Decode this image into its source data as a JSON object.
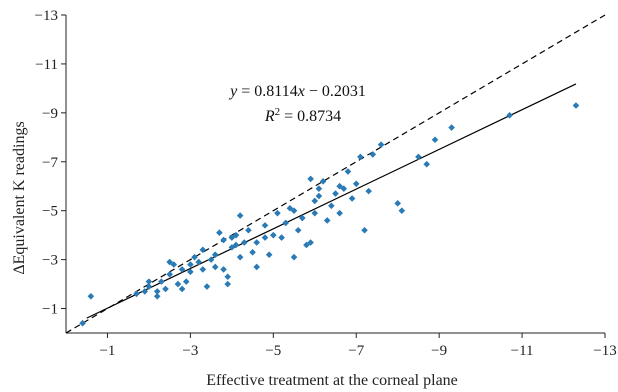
{
  "chart_data": {
    "type": "scatter",
    "title": "",
    "xlabel": "Effective treatment at the corneal plane",
    "ylabel": "ΔEquivalent K readings",
    "xlim": [
      0,
      -13
    ],
    "ylim": [
      0,
      -13
    ],
    "xticks": [
      -1,
      -3,
      -5,
      -7,
      -9,
      -11,
      -13
    ],
    "yticks": [
      -1,
      -3,
      -5,
      -7,
      -9,
      -11,
      -13
    ],
    "xtick_labels": [
      "−1",
      "−3",
      "−5",
      "−7",
      "−9",
      "−11",
      "−13"
    ],
    "ytick_labels": [
      "−1",
      "−3",
      "−5",
      "−7",
      "−9",
      "−11",
      "−13"
    ],
    "grid": false,
    "legend": "none",
    "marker": "diamond",
    "colors": {
      "points": "#2a7ab5",
      "fit_line": "#000000",
      "identity_line": "#000000"
    },
    "annotations": {
      "equation_parts": [
        "y",
        " = 0.8114",
        "x",
        " − 0.2031"
      ],
      "r2_parts": [
        "R",
        "2",
        " = 0.8734"
      ]
    },
    "lines": [
      {
        "style": "solid",
        "slope": 0.8114,
        "intercept": -0.2031,
        "x_range": [
          -0.5,
          -12.3
        ]
      },
      {
        "style": "dashed",
        "slope": 1,
        "intercept": 0,
        "x_range": [
          0,
          -13
        ]
      }
    ],
    "points": [
      [
        -0.4,
        -0.4
      ],
      [
        -0.6,
        -1.5
      ],
      [
        -1.7,
        -1.6
      ],
      [
        -1.9,
        -1.7
      ],
      [
        -2.0,
        -1.9
      ],
      [
        -2.2,
        -1.5
      ],
      [
        -2.2,
        -1.7
      ],
      [
        -2.3,
        -2.1
      ],
      [
        -2.4,
        -1.8
      ],
      [
        -2.5,
        -2.4
      ],
      [
        -2.6,
        -2.8
      ],
      [
        -2.5,
        -2.9
      ],
      [
        -2.7,
        -2.0
      ],
      [
        -2.8,
        -2.6
      ],
      [
        -2.8,
        -1.8
      ],
      [
        -2.9,
        -2.1
      ],
      [
        -3.0,
        -2.5
      ],
      [
        -3.1,
        -3.1
      ],
      [
        -3.2,
        -2.9
      ],
      [
        -3.3,
        -2.6
      ],
      [
        -3.3,
        -3.4
      ],
      [
        -3.4,
        -1.9
      ],
      [
        -3.5,
        -3.0
      ],
      [
        -3.6,
        -3.2
      ],
      [
        -3.7,
        -4.1
      ],
      [
        -3.8,
        -2.6
      ],
      [
        -3.8,
        -3.8
      ],
      [
        -3.9,
        -2.3
      ],
      [
        -3.9,
        -2.0
      ],
      [
        -4.0,
        -3.5
      ],
      [
        -4.0,
        -3.9
      ],
      [
        -4.1,
        -4.0
      ],
      [
        -4.2,
        -3.1
      ],
      [
        -4.2,
        -4.8
      ],
      [
        -4.3,
        -3.7
      ],
      [
        -4.4,
        -4.2
      ],
      [
        -4.5,
        -3.3
      ],
      [
        -4.6,
        -2.7
      ],
      [
        -4.6,
        -3.7
      ],
      [
        -4.8,
        -3.9
      ],
      [
        -4.9,
        -3.2
      ],
      [
        -5.0,
        -4.0
      ],
      [
        -5.1,
        -4.9
      ],
      [
        -5.2,
        -3.9
      ],
      [
        -5.3,
        -4.5
      ],
      [
        -5.4,
        -5.1
      ],
      [
        -5.5,
        -3.1
      ],
      [
        -5.6,
        -4.2
      ],
      [
        -5.7,
        -4.7
      ],
      [
        -5.8,
        -3.6
      ],
      [
        -5.9,
        -3.7
      ],
      [
        -5.9,
        -6.3
      ],
      [
        -6.0,
        -4.9
      ],
      [
        -6.1,
        -5.6
      ],
      [
        -6.1,
        -5.9
      ],
      [
        -6.2,
        -6.2
      ],
      [
        -6.3,
        -4.6
      ],
      [
        -6.4,
        -5.2
      ],
      [
        -6.5,
        -5.7
      ],
      [
        -6.6,
        -4.9
      ],
      [
        -6.7,
        -5.9
      ],
      [
        -6.8,
        -6.6
      ],
      [
        -6.9,
        -5.5
      ],
      [
        -7.0,
        -6.1
      ],
      [
        -7.1,
        -7.2
      ],
      [
        -7.2,
        -4.2
      ],
      [
        -7.3,
        -5.8
      ],
      [
        -7.4,
        -7.3
      ],
      [
        -7.6,
        -7.7
      ],
      [
        -8.0,
        -5.3
      ],
      [
        -8.1,
        -5.0
      ],
      [
        -8.5,
        -7.2
      ],
      [
        -8.7,
        -6.9
      ],
      [
        -8.9,
        -7.9
      ],
      [
        -9.3,
        -8.4
      ],
      [
        -10.7,
        -8.9
      ],
      [
        -12.3,
        -9.3
      ],
      [
        -3.6,
        -2.7
      ],
      [
        -4.1,
        -3.6
      ],
      [
        -4.8,
        -4.4
      ],
      [
        -5.5,
        -5.0
      ],
      [
        -6.0,
        -5.4
      ],
      [
        -3.0,
        -2.8
      ],
      [
        -2.0,
        -2.1
      ],
      [
        -6.6,
        -6.0
      ]
    ]
  }
}
